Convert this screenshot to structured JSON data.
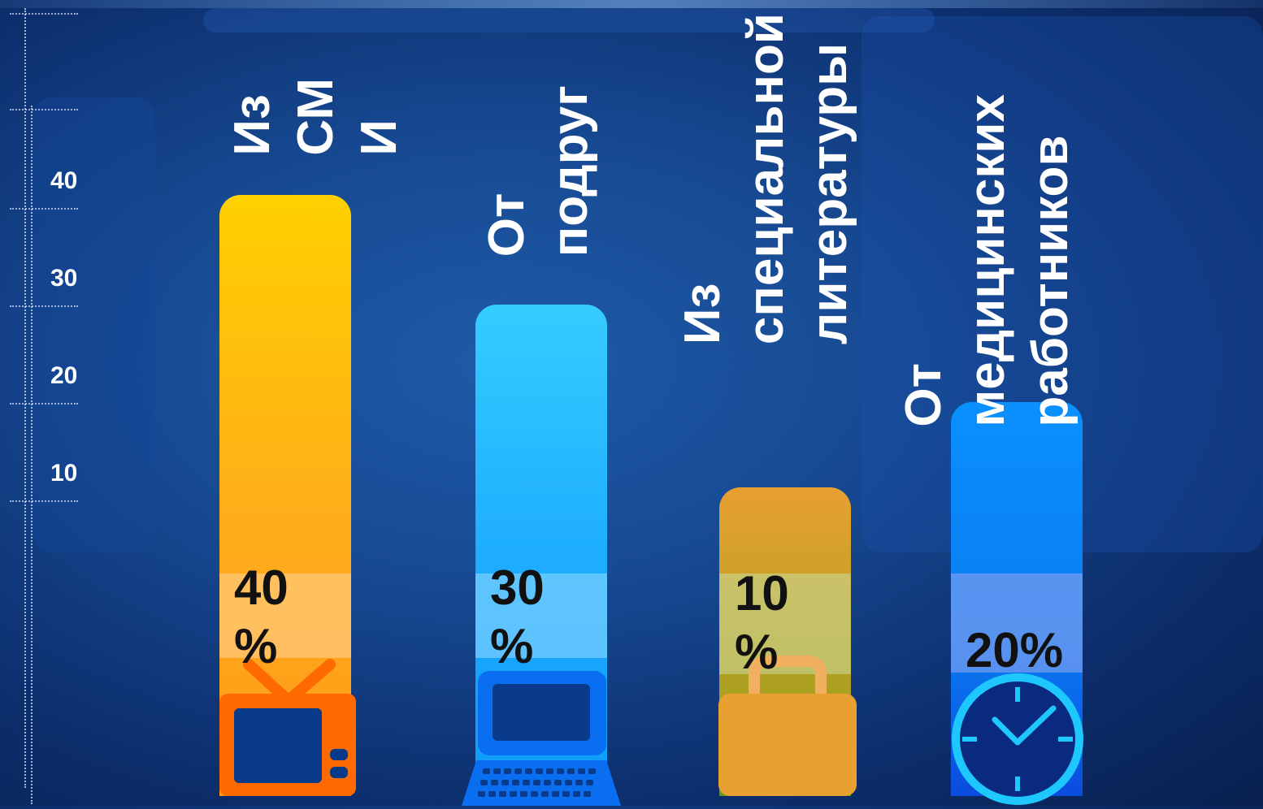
{
  "chart_data": {
    "type": "bar",
    "categories": [
      "Из\nСМ\nИ",
      "От\nподруг",
      "Из\nспециальной\nлитературы",
      "От\nмедицинских\nработников"
    ],
    "values": [
      40,
      30,
      10,
      20
    ],
    "value_labels": [
      "40\n%",
      "30\n%",
      "10\n%",
      "20%"
    ],
    "yticks": [
      "10",
      "20",
      "30",
      "40"
    ],
    "colors": [
      "#ffb000",
      "#1fb4ff",
      "#e0a030",
      "#0a82ff"
    ],
    "icons": [
      "tv-icon",
      "computer-icon",
      "bag-icon",
      "clock-icon"
    ],
    "grid": false
  }
}
